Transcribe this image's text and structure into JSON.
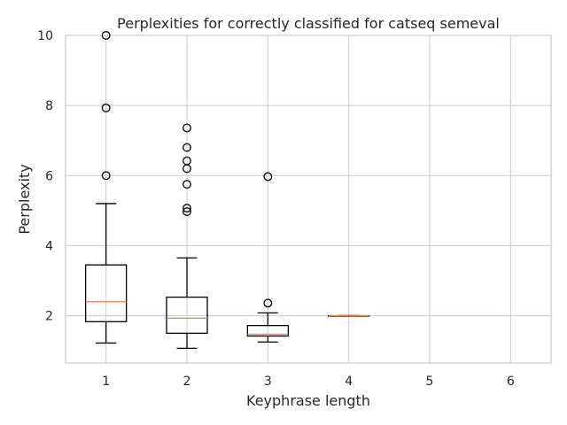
{
  "chart_data": {
    "type": "box",
    "title": "Perplexities for correctly classified for catseq semeval",
    "xlabel": "Keyphrase length",
    "ylabel": "Perplexity",
    "ylim": [
      0.65,
      10
    ],
    "xlim": [
      0.5,
      6.5
    ],
    "grid": true,
    "yticks": [
      2,
      4,
      6,
      8,
      10
    ],
    "xticks": [
      1,
      2,
      3,
      4,
      5,
      6
    ],
    "categories": [
      "1",
      "2",
      "3",
      "4",
      "5",
      "6"
    ],
    "boxes": [
      {
        "x": 1,
        "whisker_low": 1.22,
        "q1": 1.83,
        "median": 2.4,
        "q3": 3.45,
        "whisker_high": 5.2,
        "outliers": [
          6.0,
          7.93,
          10.0
        ]
      },
      {
        "x": 2,
        "whisker_low": 1.07,
        "q1": 1.5,
        "median": 1.93,
        "q3": 2.53,
        "whisker_high": 3.65,
        "outliers": [
          4.97,
          5.07,
          5.75,
          6.2,
          6.42,
          6.8,
          7.36
        ]
      },
      {
        "x": 3,
        "whisker_low": 1.25,
        "q1": 1.42,
        "median": 1.47,
        "q3": 1.72,
        "whisker_high": 2.08,
        "outliers": [
          2.36,
          5.97
        ]
      },
      {
        "x": 4,
        "whisker_low": 2.0,
        "q1": 2.0,
        "median": 2.0,
        "q3": 2.0,
        "whisker_high": 2.0,
        "outliers": []
      }
    ],
    "colors": {
      "box": "#000000",
      "median": "#ee7f4e",
      "grid": "#cccccc",
      "axes": "#cccccc"
    }
  }
}
